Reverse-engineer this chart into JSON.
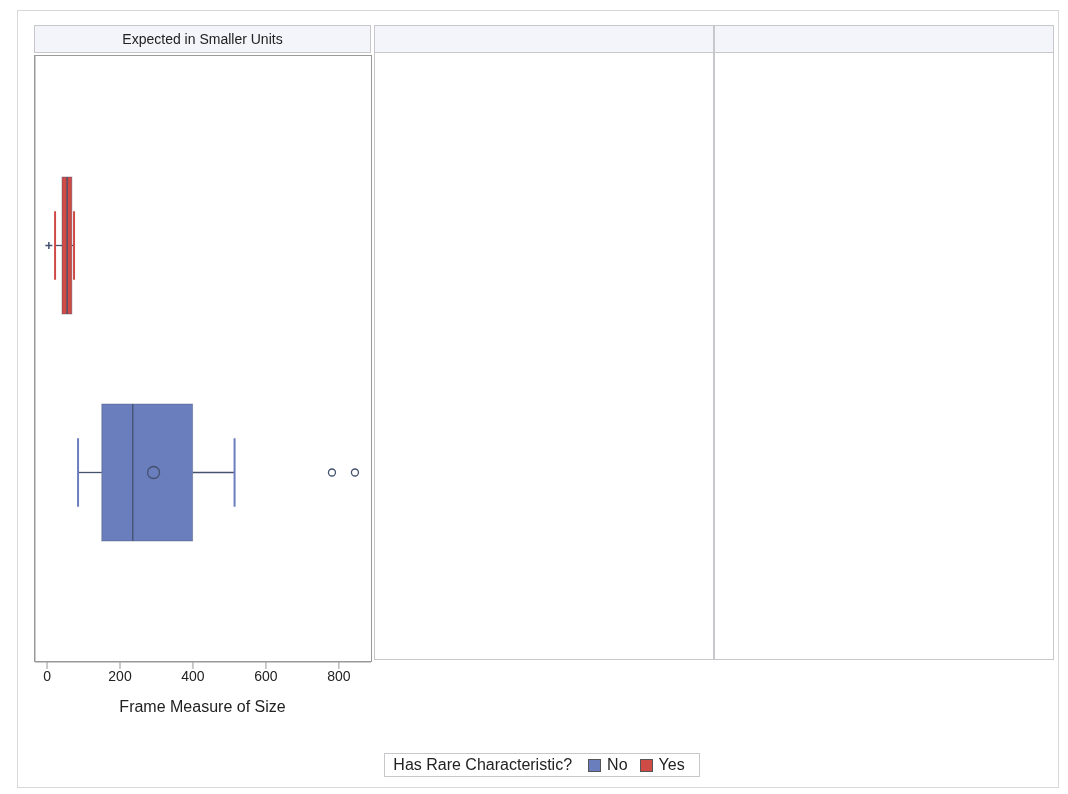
{
  "chart_data": {
    "type": "box",
    "title": "Expected in Smaller Units",
    "xlabel": "Frame Measure of Size",
    "legend_title": "Has Rare Characteristic?",
    "categories": [
      null
    ],
    "orientation": "horizontal",
    "xlim": [
      -33,
      888
    ],
    "xticks": [
      0,
      200,
      400,
      600,
      800
    ],
    "tick_labels": "x",
    "legend": "bottom",
    "grid": false,
    "series": [
      {
        "name": "No",
        "color": "#6a7dbd",
        "marker": "circle",
        "boxes": [
          {
            "low": 85,
            "q1": 150,
            "median": 235,
            "q3": 399,
            "high": 514,
            "mean": 292,
            "outliers": [
              781,
              844
            ]
          }
        ]
      },
      {
        "name": "Yes",
        "color": "#cf4b45",
        "marker": "cross",
        "boxes": [
          {
            "low": 22,
            "q1": 41,
            "median": 55,
            "q3": 68,
            "high": 74,
            "outliers": [
              5
            ]
          }
        ]
      }
    ]
  }
}
